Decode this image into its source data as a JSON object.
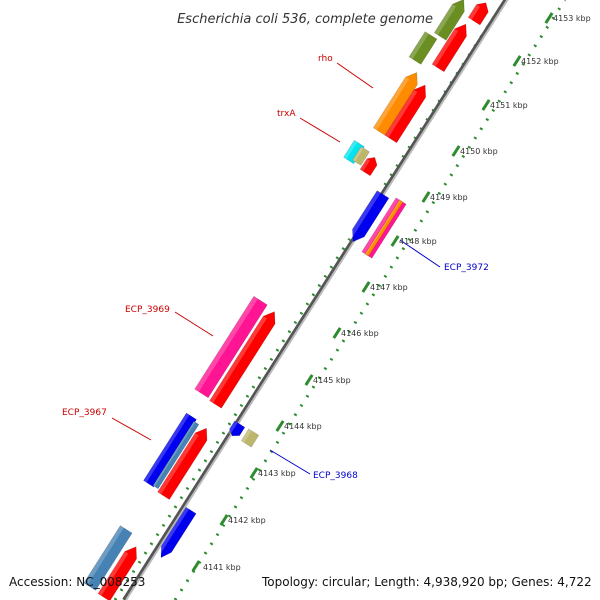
{
  "title": "Escherichia coli 536, complete genome",
  "footer": {
    "accession": "Accession: NC_008253",
    "summary": "Topology: circular; Length: 4,938,920 bp; Genes: 4,722"
  },
  "ticks": [
    {
      "label": "4141 kbp"
    },
    {
      "label": "4142 kbp"
    },
    {
      "label": "4143 kbp"
    },
    {
      "label": "4144 kbp"
    },
    {
      "label": "4145 kbp"
    },
    {
      "label": "4146 kbp"
    },
    {
      "label": "4147 kbp"
    },
    {
      "label": "4148 kbp"
    },
    {
      "label": "4149 kbp"
    },
    {
      "label": "4150 kbp"
    },
    {
      "label": "4151 kbp"
    },
    {
      "label": "4152 kbp"
    },
    {
      "label": "4153 kbp"
    }
  ],
  "gene_labels": [
    {
      "text": "rho",
      "color": "#cc0000"
    },
    {
      "text": "trxA",
      "color": "#cc0000"
    },
    {
      "text": "ECP_3969",
      "color": "#cc0000"
    },
    {
      "text": "ECP_3967",
      "color": "#cc0000"
    },
    {
      "text": "ECP_3972",
      "color": "#0000cc"
    },
    {
      "text": "ECP_3968",
      "color": "#0000cc"
    }
  ],
  "colors": {
    "backbone": "#999999",
    "tick_mark": "#2e8b2e",
    "orange": "#ff8c00",
    "red": "#ff0000",
    "blue": "#0000ee",
    "pink": "#ff1493",
    "olive": "#6b8e23",
    "cyan": "#00e5ee",
    "khaki": "#bdb76b",
    "steel": "#4682b4"
  }
}
